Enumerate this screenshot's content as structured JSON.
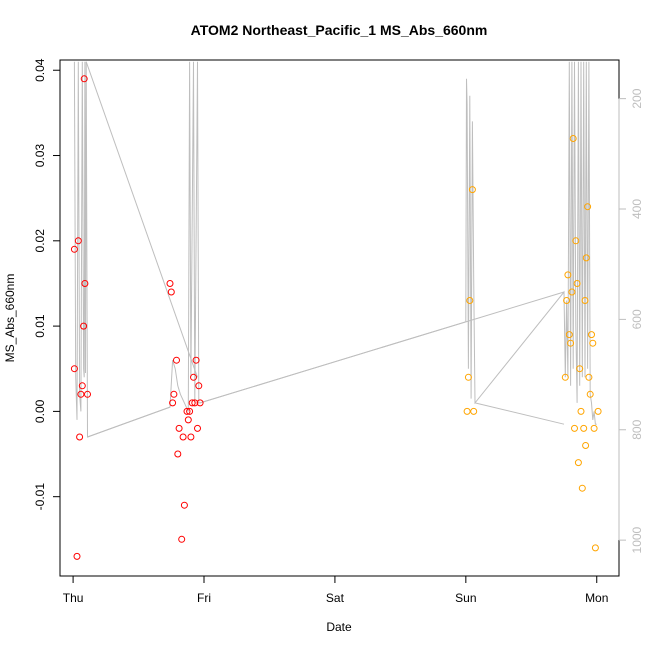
{
  "chart_data": {
    "type": "scatter",
    "title": "ATOM2 Northeast_Pacific_1 MS_Abs_660nm",
    "xlabel": "Date",
    "ylabel": "MS_Abs_660nm",
    "x_ticks": [
      "Thu",
      "Fri",
      "Sat",
      "Sun",
      "Mon"
    ],
    "xlim": [
      -0.1,
      4.17
    ],
    "ylim": [
      -0.0193,
      0.0412
    ],
    "y_ticks": [
      -0.01,
      0.0,
      0.01,
      0.02,
      0.03,
      0.04
    ],
    "y_tick_labels": [
      "-0.01",
      "0.00",
      "0.01",
      "0.02",
      "0.03",
      "0.04"
    ],
    "y2_ticks": [
      200,
      400,
      600,
      800,
      1000
    ],
    "y2_tick_labels": [
      "200",
      "400",
      "600",
      "800",
      "1000"
    ],
    "y2lim": [
      1065,
      130
    ],
    "y2_reversed": true,
    "colors": {
      "red": "#ff0000",
      "orange": "#ffa500",
      "line": "#bebebe",
      "axis": "#000000",
      "right_axis": "#bebebe"
    },
    "series": [
      {
        "color": "red",
        "points": [
          [
            0.01,
            0.019
          ],
          [
            0.01,
            0.005
          ],
          [
            0.03,
            -0.017
          ],
          [
            0.04,
            0.02
          ],
          [
            0.05,
            -0.003
          ],
          [
            0.06,
            0.002
          ],
          [
            0.07,
            0.003
          ],
          [
            0.08,
            0.01
          ],
          [
            0.085,
            0.039
          ],
          [
            0.09,
            0.015
          ],
          [
            0.11,
            0.002
          ],
          [
            0.74,
            0.015
          ],
          [
            0.75,
            0.014
          ],
          [
            0.76,
            0.001
          ],
          [
            0.77,
            0.002
          ],
          [
            0.79,
            0.006
          ],
          [
            0.8,
            -0.005
          ],
          [
            0.81,
            -0.002
          ],
          [
            0.83,
            -0.015
          ],
          [
            0.84,
            -0.003
          ],
          [
            0.85,
            -0.011
          ],
          [
            0.87,
            0.0
          ],
          [
            0.88,
            -0.001
          ],
          [
            0.89,
            0.0
          ],
          [
            0.9,
            -0.003
          ],
          [
            0.91,
            0.001
          ],
          [
            0.92,
            0.004
          ],
          [
            0.93,
            0.001
          ],
          [
            0.94,
            0.006
          ],
          [
            0.95,
            -0.002
          ],
          [
            0.96,
            0.003
          ],
          [
            0.97,
            0.001
          ]
        ]
      },
      {
        "color": "orange",
        "points": [
          [
            3.01,
            0.0
          ],
          [
            3.02,
            0.004
          ],
          [
            3.03,
            0.013
          ],
          [
            3.05,
            0.026
          ],
          [
            3.06,
            0.0
          ],
          [
            3.76,
            0.004
          ],
          [
            3.77,
            0.013
          ],
          [
            3.78,
            0.016
          ],
          [
            3.79,
            0.009
          ],
          [
            3.8,
            0.008
          ],
          [
            3.81,
            0.014
          ],
          [
            3.82,
            0.032
          ],
          [
            3.83,
            -0.002
          ],
          [
            3.84,
            0.02
          ],
          [
            3.85,
            0.015
          ],
          [
            3.86,
            -0.006
          ],
          [
            3.87,
            0.005
          ],
          [
            3.88,
            0.0
          ],
          [
            3.89,
            -0.009
          ],
          [
            3.9,
            -0.002
          ],
          [
            3.91,
            0.013
          ],
          [
            3.915,
            -0.004
          ],
          [
            3.92,
            0.018
          ],
          [
            3.93,
            0.024
          ],
          [
            3.94,
            0.004
          ],
          [
            3.95,
            0.002
          ],
          [
            3.96,
            0.009
          ],
          [
            3.97,
            0.008
          ],
          [
            3.98,
            -0.002
          ],
          [
            3.99,
            -0.016
          ],
          [
            4.01,
            0.0
          ]
        ]
      }
    ],
    "line_trace": [
      [
        0.01,
        0.041
      ],
      [
        0.02,
        0.004
      ],
      [
        0.03,
        -0.001
      ],
      [
        0.04,
        0.041
      ],
      [
        0.05,
        0.002
      ],
      [
        0.06,
        0.0
      ],
      [
        0.07,
        0.041
      ],
      [
        0.08,
        0.005
      ],
      [
        0.085,
        0.004
      ],
      [
        0.09,
        0.041
      ],
      [
        0.095,
        0.0045
      ],
      [
        0.1,
        0.041
      ],
      [
        0.11,
        -0.003
      ],
      [
        0.74,
        0.0005
      ],
      [
        0.76,
        0.006
      ],
      [
        0.78,
        0.005
      ],
      [
        0.8,
        0.003
      ],
      [
        0.82,
        0.002
      ],
      [
        0.85,
        0.001
      ],
      [
        0.88,
        0.0
      ],
      [
        0.89,
        0.041
      ],
      [
        0.9,
        0.004
      ],
      [
        0.92,
        0.041
      ],
      [
        0.93,
        0.001
      ],
      [
        0.95,
        0.041
      ],
      [
        0.96,
        0.001
      ],
      [
        0.97,
        0.001
      ],
      [
        3.0,
        0.0105
      ],
      [
        3.005,
        0.039
      ],
      [
        3.01,
        0.036
      ],
      [
        3.02,
        0.005
      ],
      [
        3.03,
        0.037
      ],
      [
        3.04,
        0.0015
      ],
      [
        3.05,
        0.034
      ],
      [
        3.06,
        0.0155
      ],
      [
        3.07,
        0.001
      ],
      [
        3.75,
        0.014
      ],
      [
        3.76,
        0.004
      ],
      [
        3.77,
        0.013
      ],
      [
        3.78,
        0.004
      ],
      [
        3.79,
        0.041
      ],
      [
        3.8,
        0.003
      ],
      [
        3.81,
        0.041
      ],
      [
        3.82,
        0.005
      ],
      [
        3.83,
        0.041
      ],
      [
        3.84,
        0.01
      ],
      [
        3.85,
        0.001
      ],
      [
        3.86,
        0.041
      ],
      [
        3.87,
        0.003
      ],
      [
        3.88,
        0.041
      ],
      [
        3.89,
        0.004
      ],
      [
        3.9,
        0.041
      ],
      [
        3.91,
        0.004
      ],
      [
        3.92,
        0.041
      ],
      [
        3.93,
        0.005
      ],
      [
        3.94,
        0.041
      ],
      [
        3.95,
        0.002
      ],
      [
        3.96,
        0.001
      ],
      [
        3.97,
        -0.001
      ],
      [
        3.98,
        0.0
      ],
      [
        3.99,
        -0.0015
      ],
      [
        4.0,
        -0.0015
      ]
    ],
    "line_extra_segments": [
      [
        [
          0.1,
          0.041
        ],
        [
          0.95,
          0.004
        ]
      ],
      [
        [
          0.11,
          -0.003
        ],
        [
          0.74,
          0.0005
        ]
      ],
      [
        [
          0.97,
          0.001
        ],
        [
          3.0,
          0.0105
        ]
      ],
      [
        [
          3.07,
          0.001
        ],
        [
          3.75,
          -0.0015
        ]
      ],
      [
        [
          3.0,
          0.0105
        ],
        [
          3.75,
          0.014
        ]
      ]
    ]
  }
}
